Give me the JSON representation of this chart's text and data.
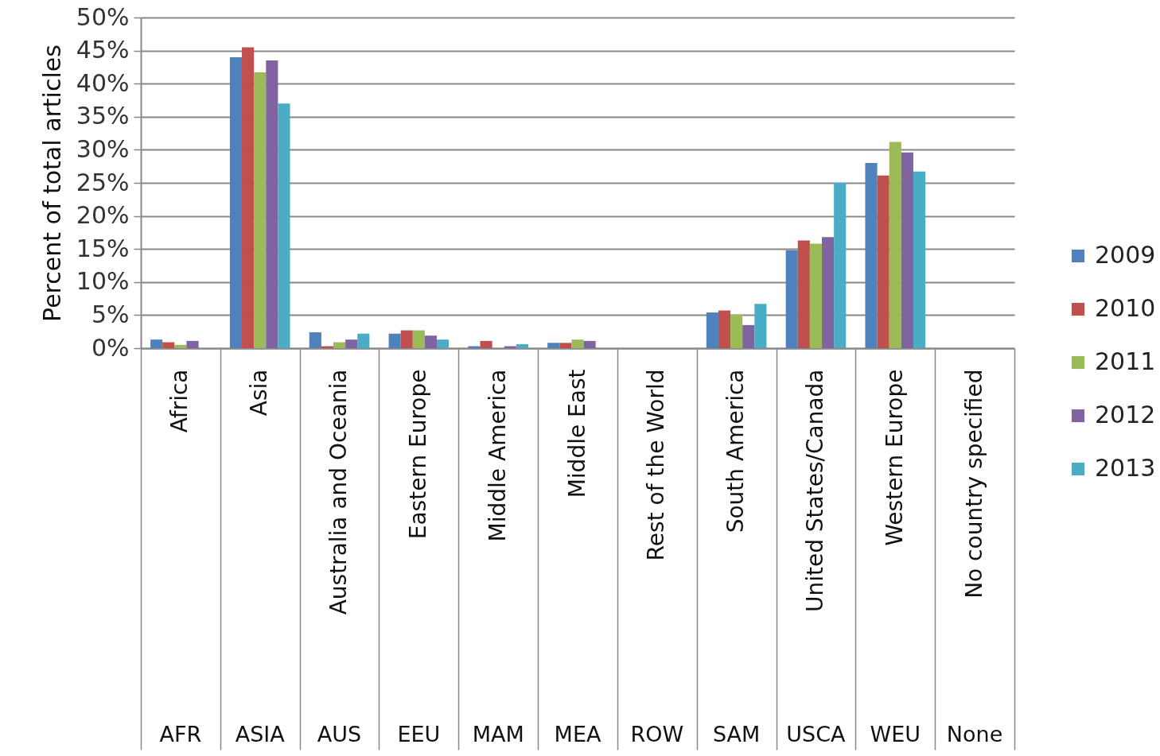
{
  "chart_data": {
    "type": "bar",
    "ylabel": "Percent of total articles",
    "categories": [
      "Africa",
      "Asia",
      "Australia and Oceania",
      "Eastern Europe",
      "Middle America",
      "Middle East",
      "Rest of the World",
      "South America",
      "United States/Canada",
      "Western Europe",
      "No country specified"
    ],
    "series": [
      {
        "name": "2009",
        "color": "#4f81bd",
        "values": [
          1.3,
          44.0,
          2.4,
          2.2,
          0.3,
          0.8,
          0,
          5.4,
          14.8,
          28.0,
          0
        ]
      },
      {
        "name": "2010",
        "color": "#c0504d",
        "values": [
          0.9,
          45.5,
          0.3,
          2.7,
          1.1,
          0.8,
          0,
          5.7,
          16.3,
          26.1,
          0
        ]
      },
      {
        "name": "2011",
        "color": "#9bbb59",
        "values": [
          0.5,
          41.7,
          0.9,
          2.7,
          0,
          1.3,
          0,
          5.1,
          15.8,
          31.2,
          0
        ]
      },
      {
        "name": "2012",
        "color": "#8064a2",
        "values": [
          1.1,
          43.5,
          1.3,
          1.9,
          0.3,
          1.1,
          0,
          3.5,
          16.8,
          29.6,
          0
        ]
      },
      {
        "name": "2013",
        "color": "#4bacc6",
        "values": [
          0,
          37.0,
          2.2,
          1.3,
          0.6,
          0,
          0,
          6.7,
          25.0,
          26.7,
          0
        ]
      }
    ],
    "ylim": [
      0,
      50
    ],
    "yticks": [
      {
        "value": 0,
        "label": "0%"
      },
      {
        "value": 5,
        "label": "5%"
      },
      {
        "value": 10,
        "label": "10%"
      },
      {
        "value": 15,
        "label": "15%"
      },
      {
        "value": 20,
        "label": "20%"
      },
      {
        "value": 25,
        "label": "25%"
      },
      {
        "value": 30,
        "label": "30%"
      },
      {
        "value": 35,
        "label": "35%"
      },
      {
        "value": 40,
        "label": "40%"
      },
      {
        "value": 45,
        "label": "45%"
      },
      {
        "value": 50,
        "label": "50%"
      }
    ],
    "grid": "y",
    "legend": "right",
    "annotations": [
      "AFR",
      "ASIA",
      "AUS",
      "EEU",
      "MAM",
      "MEA",
      "ROW",
      "SAM",
      "USCA",
      "WEU",
      "None"
    ]
  }
}
